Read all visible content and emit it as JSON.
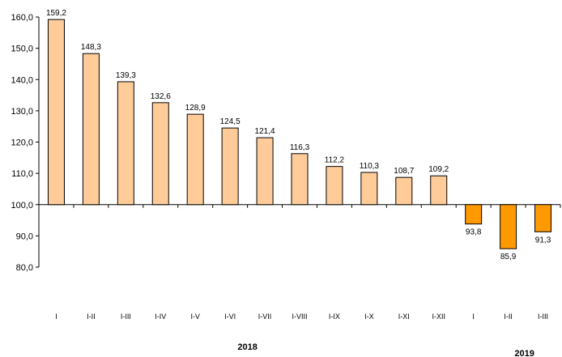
{
  "chart_data": {
    "type": "bar",
    "baseline": 100,
    "ylim": [
      80,
      160
    ],
    "yticks": [
      80,
      90,
      100,
      110,
      120,
      130,
      140,
      150,
      160
    ],
    "ytick_labels": [
      "80,0",
      "90,0",
      "100,0",
      "110,0",
      "120,0",
      "130,0",
      "140,0",
      "150,0",
      "160,0"
    ],
    "grid": false,
    "legend": "none",
    "categories": [
      "I",
      "I-II",
      "I-III",
      "I-IV",
      "I-V",
      "I-VI",
      "I-VII",
      "I-VIII",
      "I-IX",
      "I-X",
      "I-XI",
      "I-XII",
      "I",
      "I-II",
      "I-III"
    ],
    "values": [
      159.2,
      148.3,
      139.3,
      132.6,
      128.9,
      124.5,
      121.4,
      116.3,
      112.2,
      110.3,
      108.7,
      109.2,
      93.8,
      85.9,
      91.3
    ],
    "value_labels": [
      "159,2",
      "148,3",
      "139,3",
      "132,6",
      "128,9",
      "124,5",
      "121,4",
      "116,3",
      "112,2",
      "110,3",
      "108,7",
      "109,2",
      "93,8",
      "85,9",
      "91,3"
    ],
    "groups": [
      {
        "label": "2018",
        "count": 12
      },
      {
        "label": "2019",
        "count": 3
      }
    ],
    "colors": {
      "above": "#ffcc99",
      "below": "#ff9900",
      "stroke": "#000000"
    }
  }
}
